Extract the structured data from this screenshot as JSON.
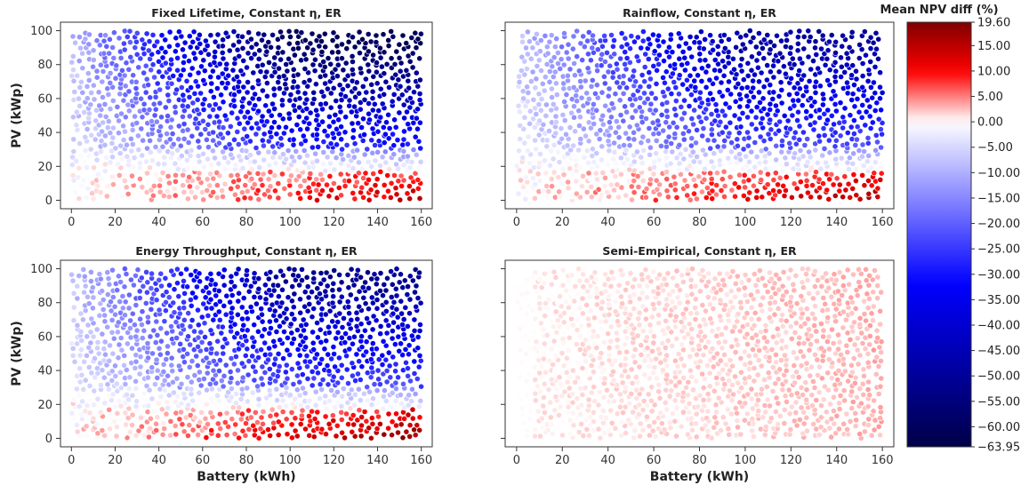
{
  "chart_data": [
    {
      "type": "scatter",
      "title": "Fixed Lifetime, Constant η, ER",
      "xlabel": "",
      "ylabel": "PV (kWp)",
      "xlim": [
        -5,
        165
      ],
      "ylim": [
        -5,
        105
      ],
      "xticks": [
        "0",
        "20",
        "40",
        "60",
        "80",
        "100",
        "120",
        "140",
        "160"
      ],
      "yticks": [
        "0",
        "20",
        "40",
        "60",
        "80",
        "100"
      ],
      "pattern": {
        "top_min": -60,
        "mid": -12,
        "low_max": 14,
        "noise": 6
      }
    },
    {
      "type": "scatter",
      "title": "Rainflow, Constant η, ER",
      "xlabel": "",
      "ylabel": "",
      "xlim": [
        -5,
        165
      ],
      "ylim": [
        -5,
        105
      ],
      "xticks": [
        "0",
        "20",
        "40",
        "60",
        "80",
        "100",
        "120",
        "140",
        "160"
      ],
      "yticks": [],
      "pattern": {
        "top_min": -48,
        "mid": -10,
        "low_max": 16,
        "noise": 6
      }
    },
    {
      "type": "scatter",
      "title": "Energy Throughput, Constant η, ER",
      "xlabel": "Battery (kWh)",
      "ylabel": "PV (kWp)",
      "xlim": [
        -5,
        165
      ],
      "ylim": [
        -5,
        105
      ],
      "xticks": [
        "0",
        "20",
        "40",
        "60",
        "80",
        "100",
        "120",
        "140",
        "160"
      ],
      "yticks": [
        "0",
        "20",
        "40",
        "60",
        "80",
        "100"
      ],
      "pattern": {
        "top_min": -50,
        "mid": -10,
        "low_max": 18,
        "noise": 6
      }
    },
    {
      "type": "scatter",
      "title": "Semi-Empirical, Constant η, ER",
      "xlabel": "Battery (kWh)",
      "ylabel": "",
      "xlim": [
        -5,
        165
      ],
      "ylim": [
        -5,
        105
      ],
      "xticks": [
        "0",
        "20",
        "40",
        "60",
        "80",
        "100",
        "120",
        "140",
        "160"
      ],
      "yticks": [],
      "pattern": {
        "top_min": 3,
        "mid": 2,
        "low_max": 1,
        "noise": 2
      }
    }
  ],
  "colorbar": {
    "title": "Mean NPV diff (%)",
    "min": -63.95,
    "max": 19.6,
    "ticks": [
      19.6,
      15.0,
      10.0,
      5.0,
      0.0,
      -5.0,
      -10.0,
      -15.0,
      -20.0,
      -25.0,
      -30.0,
      -35.0,
      -40.0,
      -45.0,
      -50.0,
      -55.0,
      -60.0,
      -63.95
    ],
    "tick_labels": [
      "19.60",
      "15.00",
      "10.00",
      "5.00",
      "0.00",
      "−5.00",
      "−10.00",
      "−15.00",
      "−20.00",
      "−25.00",
      "−30.00",
      "−35.00",
      "−40.00",
      "−45.00",
      "−50.00",
      "−55.00",
      "−60.00",
      "−63.95"
    ],
    "colormap": "seismic"
  }
}
